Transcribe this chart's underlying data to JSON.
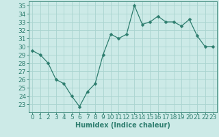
{
  "x": [
    0,
    1,
    2,
    3,
    4,
    5,
    6,
    7,
    8,
    9,
    10,
    11,
    12,
    13,
    14,
    15,
    16,
    17,
    18,
    19,
    20,
    21,
    22,
    23
  ],
  "y": [
    29.5,
    29.0,
    28.0,
    26.0,
    25.5,
    24.0,
    22.7,
    24.5,
    25.5,
    29.0,
    31.5,
    31.0,
    31.5,
    35.0,
    32.7,
    33.0,
    33.7,
    33.0,
    33.0,
    32.5,
    33.3,
    31.3,
    30.0,
    30.0
  ],
  "xlabel": "Humidex (Indice chaleur)",
  "ylim": [
    22.0,
    35.5
  ],
  "xlim": [
    -0.5,
    23.5
  ],
  "yticks": [
    23,
    24,
    25,
    26,
    27,
    28,
    29,
    30,
    31,
    32,
    33,
    34,
    35
  ],
  "xticks": [
    0,
    1,
    2,
    3,
    4,
    5,
    6,
    7,
    8,
    9,
    10,
    11,
    12,
    13,
    14,
    15,
    16,
    17,
    18,
    19,
    20,
    21,
    22,
    23
  ],
  "line_color": "#2d7d6e",
  "marker": "D",
  "marker_size": 2.5,
  "bg_color": "#cceae7",
  "grid_color": "#aad4d0",
  "tick_label_color": "#2d7d6e",
  "xlabel_color": "#2d7d6e",
  "xlabel_fontsize": 7,
  "tick_fontsize": 6.5,
  "spine_color": "#2d7d6e"
}
